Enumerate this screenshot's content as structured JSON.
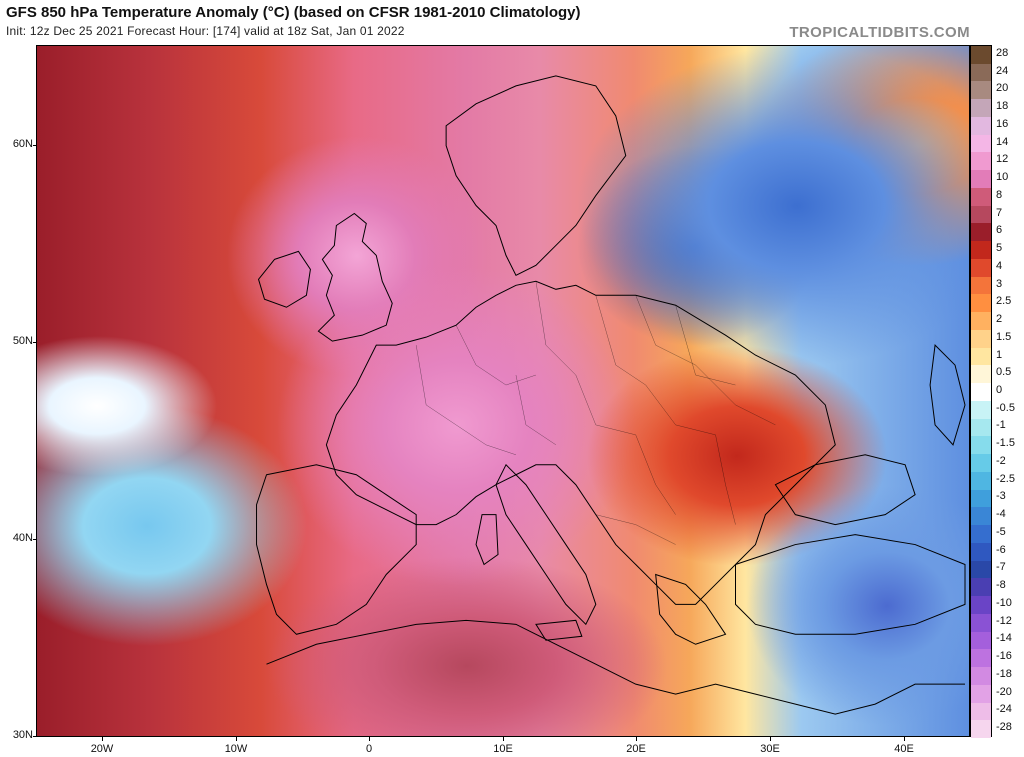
{
  "header": {
    "title": "GFS 850 hPa Temperature Anomaly (°C) (based on CFSR 1981-2010 Climatology)",
    "subtitle": "Init: 12z Dec 25 2021   Forecast Hour: [174]   valid at 18z Sat, Jan 01 2022",
    "brand": "TROPICALTIDBITS.COM"
  },
  "axes": {
    "lat_labels": [
      "60N",
      "50N",
      "40N",
      "30N"
    ],
    "lon_labels": [
      "20W",
      "10W",
      "0",
      "10E",
      "20E",
      "30E",
      "40E"
    ]
  },
  "colorbar": {
    "levels": [
      {
        "label": "28",
        "color": "#6b4a2e"
      },
      {
        "label": "24",
        "color": "#8a6a58"
      },
      {
        "label": "20",
        "color": "#a88a80"
      },
      {
        "label": "18",
        "color": "#c4a6b8"
      },
      {
        "label": "16",
        "color": "#e2b8e0"
      },
      {
        "label": "14",
        "color": "#f4b6e6"
      },
      {
        "label": "12",
        "color": "#f09ad0"
      },
      {
        "label": "10",
        "color": "#e27cb8"
      },
      {
        "label": "8",
        "color": "#cf5b79"
      },
      {
        "label": "7",
        "color": "#b6485e"
      },
      {
        "label": "6",
        "color": "#9a1e2a"
      },
      {
        "label": "5",
        "color": "#c2281c"
      },
      {
        "label": "4",
        "color": "#e0492c"
      },
      {
        "label": "3",
        "color": "#f4743a"
      },
      {
        "label": "2.5",
        "color": "#ff8f40"
      },
      {
        "label": "2",
        "color": "#ffb160"
      },
      {
        "label": "1.5",
        "color": "#ffd28a"
      },
      {
        "label": "1",
        "color": "#ffe6a0"
      },
      {
        "label": "0.5",
        "color": "#fff6d8"
      },
      {
        "label": "0",
        "color": "#ffffff"
      },
      {
        "label": "-0.5",
        "color": "#c8f3f6"
      },
      {
        "label": "-1",
        "color": "#a6e8ef"
      },
      {
        "label": "-1.5",
        "color": "#86dcec"
      },
      {
        "label": "-2",
        "color": "#66cbe8"
      },
      {
        "label": "-2.5",
        "color": "#4fb6e2"
      },
      {
        "label": "-3",
        "color": "#3f9fdc"
      },
      {
        "label": "-4",
        "color": "#3a86d6"
      },
      {
        "label": "-5",
        "color": "#356ecf"
      },
      {
        "label": "-6",
        "color": "#2f58c0"
      },
      {
        "label": "-7",
        "color": "#2a48a8"
      },
      {
        "label": "-8",
        "color": "#4a3fb2"
      },
      {
        "label": "-10",
        "color": "#6a44c6"
      },
      {
        "label": "-12",
        "color": "#8a52d4"
      },
      {
        "label": "-14",
        "color": "#a45fdc"
      },
      {
        "label": "-16",
        "color": "#bd72e0"
      },
      {
        "label": "-18",
        "color": "#d28ae2"
      },
      {
        "label": "-20",
        "color": "#e2a2e6"
      },
      {
        "label": "-24",
        "color": "#eebde8"
      },
      {
        "label": "-28",
        "color": "#f6d6ee"
      }
    ]
  }
}
